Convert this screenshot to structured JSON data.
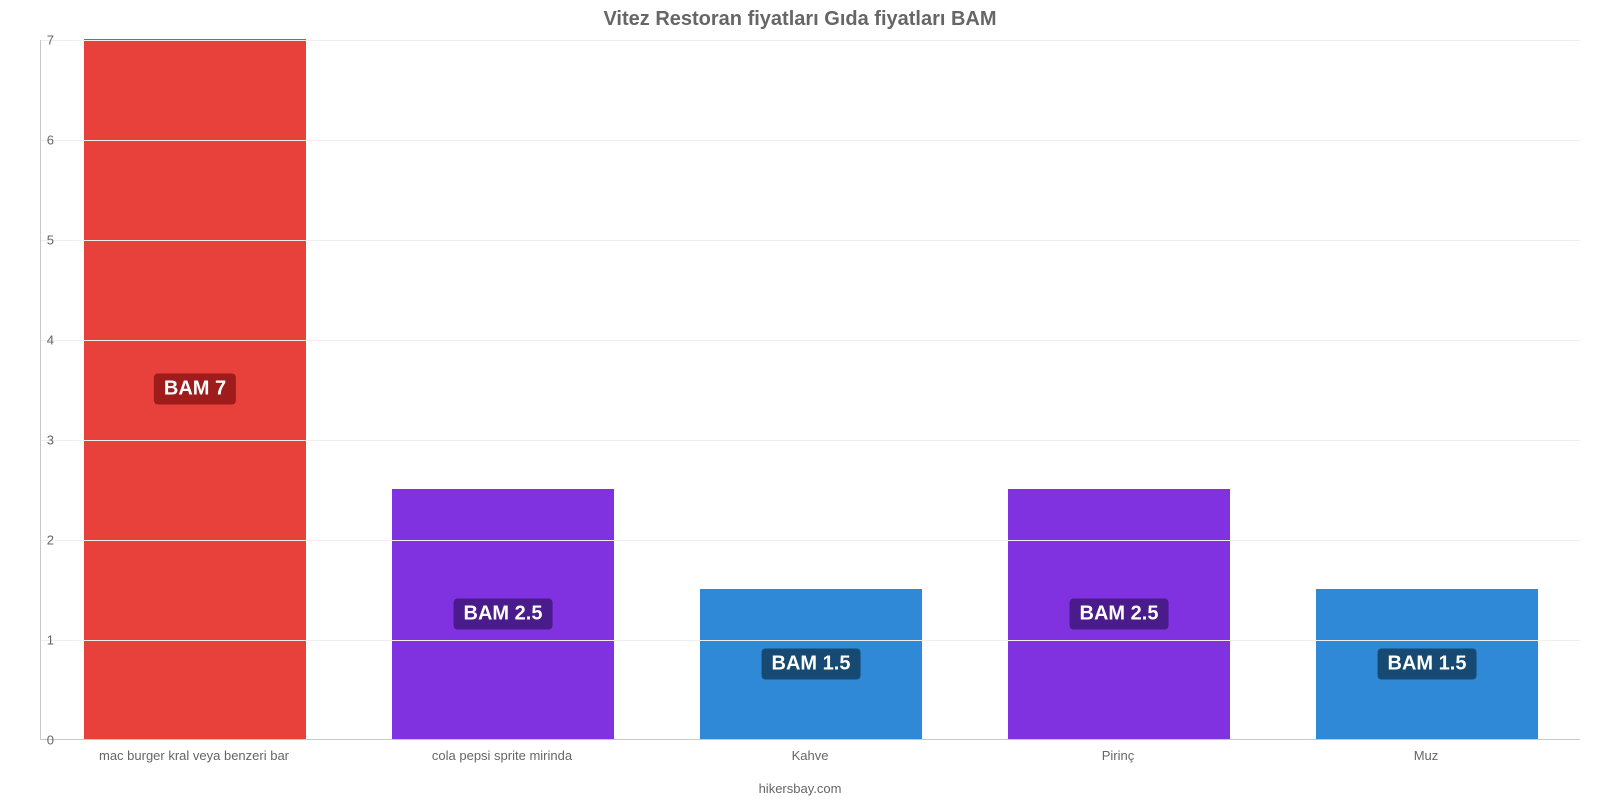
{
  "chart": {
    "type": "bar",
    "title": "Vitez Restoran fiyatları Gıda fiyatları BAM",
    "title_fontsize": 20,
    "title_color": "#666666",
    "credit": "hikersbay.com",
    "credit_fontsize": 13,
    "credit_color": "#666666",
    "background_color": "#ffffff",
    "grid_color": "#f2eeee",
    "axis_color": "#c8c8c8",
    "tick_color": "#666666",
    "tick_fontsize": 13,
    "ylim": [
      0,
      7
    ],
    "ytick_step": 1,
    "yticks": [
      0,
      1,
      2,
      3,
      4,
      5,
      6,
      7
    ],
    "bar_width_ratio": 0.72,
    "data_label_fontsize": 20,
    "data_label_text_color": "#ffffff",
    "data_label_radius": 4,
    "categories": [
      "mac burger kral veya benzeri bar",
      "cola pepsi sprite mirinda",
      "Kahve",
      "Pirinç",
      "Muz"
    ],
    "values": [
      7,
      2.5,
      1.5,
      2.5,
      1.5
    ],
    "bar_colors": [
      "#e8403a",
      "#8032e0",
      "#2f89d6",
      "#8032e0",
      "#2f89d6"
    ],
    "data_labels": [
      "BAM 7",
      "BAM 2.5",
      "BAM 1.5",
      "BAM 2.5",
      "BAM 1.5"
    ],
    "data_label_bg": [
      "#9e1c1c",
      "#4a1b8a",
      "#164a72",
      "#4a1b8a",
      "#164a72"
    ]
  }
}
